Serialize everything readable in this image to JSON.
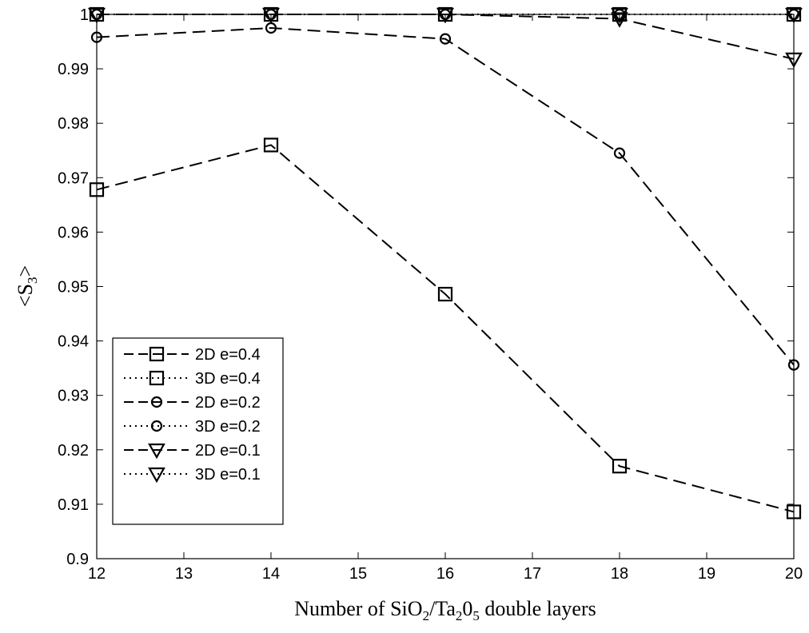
{
  "chart_data": {
    "type": "line",
    "title": "",
    "xlabel": {
      "pre": "Number of SiO",
      "sub1": "2",
      "mid": "/Ta",
      "sub2": "2",
      "mid2": "0",
      "sub3": "5",
      "post": " double layers"
    },
    "ylabel": {
      "pre": "<S",
      "sub": "3",
      "post": ">"
    },
    "xlim": [
      12,
      20
    ],
    "ylim": [
      0.9,
      1.0
    ],
    "xticks": [
      12,
      13,
      14,
      15,
      16,
      17,
      18,
      19,
      20
    ],
    "yticks": [
      "0.9",
      "0.91",
      "0.92",
      "0.93",
      "0.94",
      "0.95",
      "0.96",
      "0.97",
      "0.98",
      "0.99",
      "1"
    ],
    "grid": false,
    "legend_position": "bottom-left",
    "x": [
      12,
      14,
      16,
      18,
      20
    ],
    "series": [
      {
        "name": "2D e=0.4",
        "line": "dashed",
        "marker": "square",
        "values": [
          0.9678,
          0.976,
          0.9486,
          0.917,
          0.9086
        ]
      },
      {
        "name": "3D e=0.4",
        "line": "dotted",
        "marker": "square",
        "values": [
          1.0,
          1.0,
          1.0,
          1.0,
          1.0
        ]
      },
      {
        "name": "2D e=0.2",
        "line": "dashed",
        "marker": "circle",
        "values": [
          0.9958,
          0.9975,
          0.9955,
          0.9745,
          0.9356
        ]
      },
      {
        "name": "3D e=0.2",
        "line": "dotted",
        "marker": "circle",
        "values": [
          1.0,
          1.0,
          1.0,
          1.0,
          1.0
        ]
      },
      {
        "name": "2D e=0.1",
        "line": "dashed",
        "marker": "triangle-down",
        "values": [
          1.0,
          1.0,
          1.0,
          0.9992,
          0.9918
        ]
      },
      {
        "name": "3D e=0.1",
        "line": "dotted",
        "marker": "triangle-down",
        "values": [
          1.0,
          1.0,
          1.0,
          1.0,
          1.0
        ]
      }
    ]
  }
}
